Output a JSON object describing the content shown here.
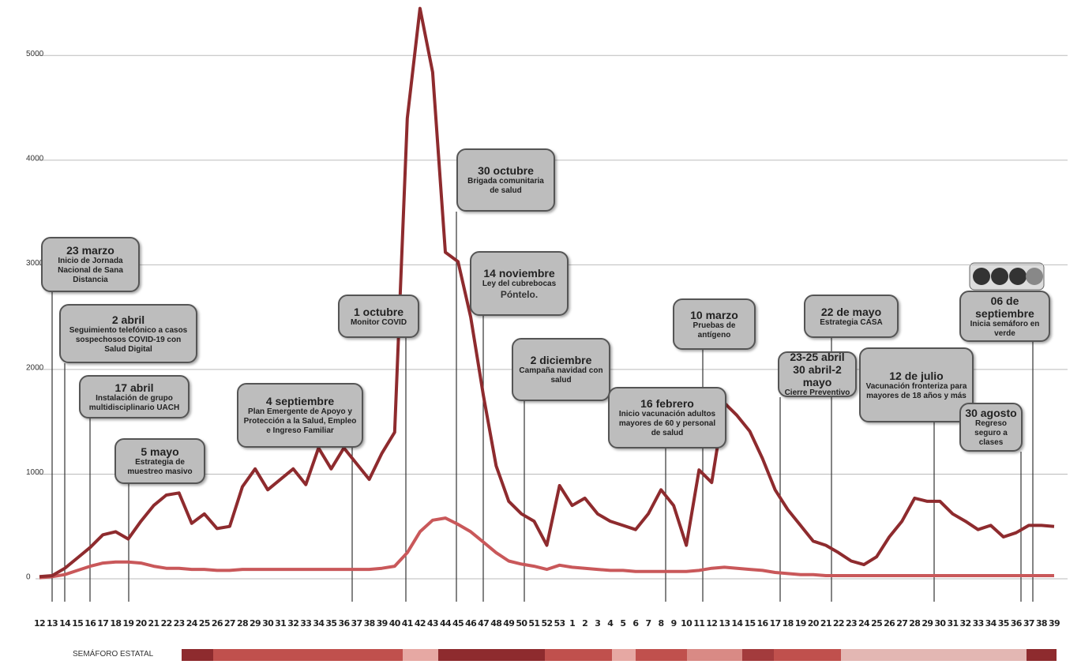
{
  "chart_data": {
    "type": "line",
    "categories": [
      12,
      13,
      14,
      15,
      16,
      17,
      18,
      19,
      20,
      21,
      22,
      23,
      24,
      25,
      26,
      27,
      28,
      29,
      30,
      31,
      32,
      33,
      34,
      35,
      36,
      37,
      38,
      39,
      40,
      41,
      42,
      43,
      44,
      45,
      46,
      47,
      48,
      49,
      50,
      51,
      52,
      53,
      1,
      2,
      3,
      4,
      5,
      6,
      7,
      8,
      9,
      10,
      11,
      12,
      13,
      14,
      15,
      16,
      17,
      18,
      19,
      20,
      21,
      22,
      23,
      24,
      25,
      26,
      27,
      28,
      29,
      30,
      31,
      32,
      33,
      34,
      35,
      36,
      37,
      38,
      39
    ],
    "series": [
      {
        "color": "#8e2b2e",
        "values": [
          20,
          30,
          100,
          200,
          300,
          420,
          450,
          380,
          550,
          700,
          800,
          820,
          530,
          620,
          480,
          500,
          880,
          1050,
          850,
          950,
          1050,
          900,
          1250,
          1050,
          1250,
          1100,
          950,
          1200,
          1400,
          4400,
          5450,
          4840,
          3120,
          3030,
          2500,
          1750,
          1080,
          740,
          620,
          550,
          320,
          890,
          700,
          770,
          620,
          550,
          510,
          470,
          620,
          850,
          700,
          320,
          1040,
          920,
          1680,
          1560,
          1410,
          1150,
          850,
          660,
          510,
          360,
          320,
          250,
          170,
          135,
          210,
          400,
          550,
          770,
          740,
          740,
          620,
          550,
          470,
          510,
          400,
          440,
          510,
          510,
          500
        ]
      },
      {
        "color": "#c9585a",
        "values": [
          10,
          20,
          40,
          80,
          120,
          150,
          160,
          160,
          150,
          120,
          100,
          100,
          90,
          90,
          80,
          80,
          90,
          90,
          90,
          90,
          90,
          90,
          90,
          90,
          90,
          90,
          90,
          100,
          120,
          250,
          450,
          560,
          580,
          520,
          450,
          350,
          250,
          170,
          140,
          120,
          90,
          130,
          110,
          100,
          90,
          80,
          80,
          70,
          70,
          70,
          70,
          70,
          80,
          100,
          110,
          100,
          90,
          80,
          60,
          50,
          40,
          40,
          30,
          30,
          30,
          30,
          30,
          30,
          30,
          30,
          30,
          30,
          30,
          30,
          30,
          30,
          30,
          30,
          30,
          30,
          30
        ]
      }
    ],
    "ylim": [
      0,
      5500
    ],
    "yticks": [
      0,
      1000,
      2000,
      3000,
      4000,
      5000
    ],
    "grid": true,
    "annotations": [
      {
        "title": "23 marzo",
        "text": "Inicio de Jornada Nacional de Sana Distancia"
      },
      {
        "title": "2 abril",
        "text": "Seguimiento telefónico a casos sospechosos COVID-19 con Salud Digital"
      },
      {
        "title": "17 abril",
        "text": "Instalación de grupo multidisciplinario UACH"
      },
      {
        "title": "5 mayo",
        "text": "Estrategia de muestreo masivo"
      },
      {
        "title": "4 septiembre",
        "text": "Plan Emergente de Apoyo y Protección a la Salud, Empleo e Ingreso Familiar"
      },
      {
        "title": "1 octubre",
        "text": "Monitor COVID"
      },
      {
        "title": "30 octubre",
        "text": "Brigada comunitaria de salud"
      },
      {
        "title": "14 noviembre",
        "text": "Ley del cubrebocas",
        "logo": "Póntelo."
      },
      {
        "title": "2 diciembre",
        "text": "Campaña navidad con salud"
      },
      {
        "title": "16 febrero",
        "text": "Inicio vacunación adultos mayores de 60 y personal de salud"
      },
      {
        "title": "10 marzo",
        "text": "Pruebas de antígeno"
      },
      {
        "title": "23-25 abril 30 abril-2 mayo",
        "text": "Cierre Preventivo"
      },
      {
        "title": "22 de mayo",
        "text": "Estrategia CASA"
      },
      {
        "title": "12 de julio",
        "text": "Vacunación fronteriza para mayores de 18 años y más"
      },
      {
        "title": "30 agosto",
        "text": "Regreso seguro a clases"
      },
      {
        "title": "06 de septiembre",
        "text": "Inicia semáforo en verde"
      }
    ],
    "semaforo": {
      "label": "SEMÁFORO ESTATAL",
      "colors": [
        "#8e2b2e",
        "#c0504d",
        "#e6a8a3",
        "#8e2b2e",
        "#c0504d",
        "#e6a8a3",
        "#c0504d",
        "#d98a85",
        "#a33b3d",
        "#c0504d",
        "#e3b7b3",
        "#8e2b2e"
      ]
    }
  }
}
